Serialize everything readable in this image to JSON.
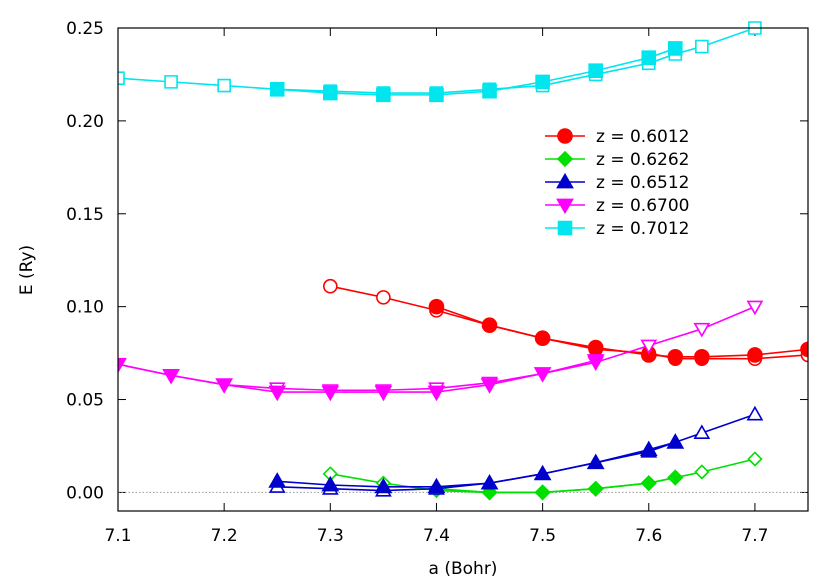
{
  "chart_data": {
    "type": "line",
    "title": "",
    "xlabel": "a (Bohr)",
    "ylabel": "E (Ry)",
    "xlim": [
      7.1,
      7.75
    ],
    "ylim": [
      -0.01,
      0.25
    ],
    "xticks": [
      7.1,
      7.2,
      7.3,
      7.4,
      7.5,
      7.6,
      7.7
    ],
    "xtick_labels": [
      "7.1",
      "7.2",
      "7.3",
      "7.4",
      "7.5",
      "7.6",
      "7.7"
    ],
    "yticks": [
      0.0,
      0.05,
      0.1,
      0.15,
      0.2,
      0.25
    ],
    "ytick_labels": [
      "0.00",
      "0.05",
      "0.10",
      "0.15",
      "0.20",
      "0.25"
    ],
    "zero_line": true,
    "grid": false,
    "legend_position": "top-right",
    "series": [
      {
        "name": "z = 0.6012",
        "color": "#ff0000",
        "marker": "circle",
        "filled": {
          "x": [
            7.4,
            7.45,
            7.5,
            7.55,
            7.6,
            7.625,
            7.65,
            7.7,
            7.75
          ],
          "y": [
            0.1,
            0.09,
            0.083,
            0.078,
            0.074,
            0.073,
            0.073,
            0.074,
            0.077
          ]
        },
        "open": {
          "x": [
            7.3,
            7.35,
            7.4,
            7.45,
            7.5,
            7.55,
            7.6,
            7.625,
            7.65,
            7.7,
            7.75
          ],
          "y": [
            0.111,
            0.105,
            0.098,
            0.09,
            0.083,
            0.077,
            0.075,
            0.072,
            0.072,
            0.072,
            0.074
          ]
        }
      },
      {
        "name": "z = 0.6262",
        "color": "#00e000",
        "marker": "diamond",
        "filled": {
          "x": [
            7.4,
            7.45,
            7.5,
            7.55,
            7.6,
            7.625
          ],
          "y": [
            0.002,
            0.0,
            0.0,
            0.002,
            0.005,
            0.008
          ]
        },
        "open": {
          "x": [
            7.3,
            7.35,
            7.4,
            7.45,
            7.5,
            7.55,
            7.6,
            7.625,
            7.65,
            7.7
          ],
          "y": [
            0.01,
            0.005,
            0.001,
            0.0,
            0.0,
            0.002,
            0.005,
            0.008,
            0.011,
            0.018
          ]
        }
      },
      {
        "name": "z = 0.6512",
        "color": "#0000cc",
        "marker": "triangle-up",
        "filled": {
          "x": [
            7.25,
            7.3,
            7.35,
            7.4,
            7.45,
            7.5,
            7.55,
            7.6,
            7.625
          ],
          "y": [
            0.006,
            0.004,
            0.003,
            0.003,
            0.005,
            0.01,
            0.016,
            0.023,
            0.027
          ]
        },
        "open": {
          "x": [
            7.25,
            7.3,
            7.35,
            7.4,
            7.45,
            7.5,
            7.55,
            7.6,
            7.625,
            7.65,
            7.7
          ],
          "y": [
            0.003,
            0.002,
            0.001,
            0.002,
            0.005,
            0.01,
            0.016,
            0.022,
            0.027,
            0.032,
            0.042
          ]
        }
      },
      {
        "name": "z = 0.6700",
        "color": "#ff00ff",
        "marker": "triangle-down",
        "filled": {
          "x": [
            7.1,
            7.15,
            7.2,
            7.25,
            7.3,
            7.35,
            7.4,
            7.45,
            7.5,
            7.55
          ],
          "y": [
            0.069,
            0.063,
            0.058,
            0.054,
            0.054,
            0.054,
            0.054,
            0.058,
            0.064,
            0.071
          ]
        },
        "open": {
          "x": [
            7.1,
            7.15,
            7.2,
            7.25,
            7.3,
            7.35,
            7.4,
            7.45,
            7.5,
            7.55,
            7.6,
            7.65,
            7.7
          ],
          "y": [
            0.069,
            0.063,
            0.058,
            0.056,
            0.055,
            0.055,
            0.056,
            0.059,
            0.064,
            0.07,
            0.079,
            0.088,
            0.1
          ]
        }
      },
      {
        "name": "z = 0.7012",
        "color": "#00e5ee",
        "marker": "square",
        "filled": {
          "x": [
            7.25,
            7.3,
            7.35,
            7.4,
            7.45,
            7.5,
            7.55,
            7.6,
            7.625
          ],
          "y": [
            0.217,
            0.215,
            0.214,
            0.214,
            0.216,
            0.221,
            0.227,
            0.234,
            0.239
          ]
        },
        "open": {
          "x": [
            7.1,
            7.15,
            7.2,
            7.25,
            7.3,
            7.35,
            7.4,
            7.45,
            7.5,
            7.55,
            7.6,
            7.625,
            7.65,
            7.7
          ],
          "y": [
            0.223,
            0.221,
            0.219,
            0.217,
            0.216,
            0.215,
            0.215,
            0.217,
            0.219,
            0.225,
            0.231,
            0.236,
            0.24,
            0.25
          ]
        }
      }
    ]
  }
}
